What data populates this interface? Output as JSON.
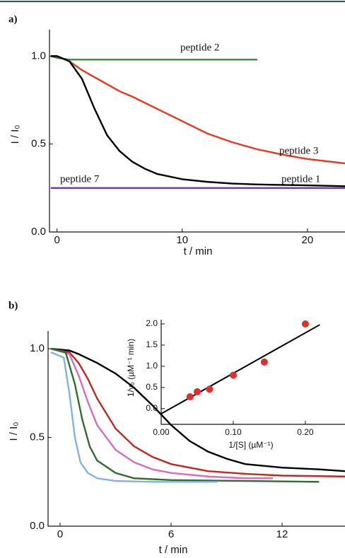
{
  "chart_data": [
    {
      "type": "line",
      "panel": "a)",
      "y_label": "I / I₀",
      "x_label": "t / min",
      "xlim": [
        -0.6,
        23
      ],
      "ylim": [
        0,
        1.15
      ],
      "xticks": [
        0,
        10,
        20
      ],
      "yticks": [
        {
          "value": 0,
          "label": "0.0"
        },
        {
          "value": 0.5,
          "label": "0.5"
        },
        {
          "value": 1,
          "label": "1.0"
        }
      ],
      "series": [
        {
          "name": "peptide 2",
          "color": "#3a8a3a",
          "x": [
            -0.5,
            0,
            1,
            4,
            8,
            12,
            16
          ],
          "values": [
            1,
            0.99,
            0.98,
            0.98,
            0.98,
            0.98,
            0.98
          ]
        },
        {
          "name": "peptide 3",
          "color": "#e8381f",
          "x": [
            -0.5,
            0,
            1,
            2,
            3,
            4,
            5,
            6,
            8,
            10,
            12,
            14,
            16,
            18,
            20,
            23
          ],
          "values": [
            1,
            1,
            0.97,
            0.92,
            0.88,
            0.84,
            0.8,
            0.77,
            0.7,
            0.63,
            0.56,
            0.51,
            0.47,
            0.44,
            0.415,
            0.39
          ]
        },
        {
          "name": "peptide 1",
          "color": "#000000",
          "x": [
            -0.5,
            0,
            1,
            2,
            3,
            4,
            5,
            6,
            7,
            8,
            10,
            12,
            14,
            16,
            20,
            23
          ],
          "values": [
            1,
            1,
            0.97,
            0.87,
            0.7,
            0.55,
            0.46,
            0.4,
            0.36,
            0.33,
            0.3,
            0.285,
            0.275,
            0.27,
            0.265,
            0.26
          ]
        },
        {
          "name": "peptide 7",
          "color": "#6a3db0",
          "x": [
            -0.5,
            5,
            10,
            15,
            23
          ],
          "values": [
            0.25,
            0.25,
            0.25,
            0.25,
            0.25
          ]
        }
      ]
    },
    {
      "type": "line",
      "panel": "b)",
      "y_label": "I / I₀",
      "x_label": "t / min",
      "xlim": [
        -0.65,
        15.4
      ],
      "ylim": [
        0,
        1.1
      ],
      "xticks": [
        0,
        6,
        12
      ],
      "yticks": [
        {
          "value": 0,
          "label": "0.0"
        },
        {
          "value": 0.5,
          "label": "0.5"
        },
        {
          "value": 1,
          "label": "1.0"
        }
      ],
      "series": [
        {
          "color": "#000000",
          "x": [
            -0.5,
            0.5,
            1,
            2,
            3,
            4,
            5,
            6,
            7,
            8,
            9,
            10,
            12,
            14,
            15.4
          ],
          "values": [
            1,
            0.99,
            0.97,
            0.92,
            0.86,
            0.78,
            0.68,
            0.57,
            0.48,
            0.42,
            0.38,
            0.35,
            0.33,
            0.32,
            0.31
          ]
        },
        {
          "color": "#c0281e",
          "x": [
            -0.5,
            0.5,
            1,
            1.5,
            2,
            3,
            4,
            5,
            6,
            8,
            10,
            12,
            15.4
          ],
          "values": [
            1,
            0.98,
            0.92,
            0.83,
            0.72,
            0.55,
            0.45,
            0.39,
            0.35,
            0.31,
            0.295,
            0.285,
            0.28
          ]
        },
        {
          "color": "#d86cc0",
          "x": [
            -0.5,
            0.5,
            1,
            1.5,
            2,
            3,
            4,
            5,
            6,
            8,
            10,
            11.5
          ],
          "values": [
            1,
            0.97,
            0.85,
            0.7,
            0.57,
            0.43,
            0.36,
            0.32,
            0.3,
            0.28,
            0.27,
            0.27
          ]
        },
        {
          "color": "#2e6e2a",
          "x": [
            -0.5,
            0.3,
            0.8,
            1.2,
            1.6,
            2,
            3,
            4,
            6,
            10,
            14
          ],
          "values": [
            1,
            0.98,
            0.8,
            0.6,
            0.45,
            0.37,
            0.3,
            0.27,
            0.26,
            0.255,
            0.25
          ]
        },
        {
          "color": "#7fb2e8",
          "x": [
            -0.5,
            0.2,
            0.5,
            0.8,
            1.1,
            1.5,
            2,
            3,
            5,
            8.5
          ],
          "values": [
            0.98,
            0.95,
            0.75,
            0.5,
            0.36,
            0.3,
            0.27,
            0.255,
            0.25,
            0.25
          ]
        }
      ]
    },
    {
      "type": "scatter",
      "y_label": "1/v₀ (µM⁻¹ min)",
      "x_label": "1/[S] (µM⁻¹)",
      "xlim": [
        0,
        0.255
      ],
      "ylim": [
        -0.37,
        2.1
      ],
      "xticks": [
        {
          "value": 0,
          "label": "0.00"
        },
        {
          "value": 0.1,
          "label": "0.10"
        },
        {
          "value": 0.2,
          "label": "0.20"
        }
      ],
      "yticks": [
        {
          "value": 0,
          "label": "0.0"
        },
        {
          "value": 0.5,
          "label": "0.5"
        },
        {
          "value": 1,
          "label": "1.0"
        },
        {
          "value": 1.5,
          "label": "1.5"
        },
        {
          "value": 2,
          "label": "2.0"
        }
      ],
      "color": "#e0302a",
      "x": [
        0.04,
        0.05,
        0.067,
        0.1,
        0.143,
        0.2
      ],
      "values": [
        0.28,
        0.4,
        0.46,
        0.79,
        1.1,
        2.0
      ],
      "fit": {
        "color": "#000000",
        "x": [
          0,
          0.22
        ],
        "values": [
          -0.12,
          1.98
        ]
      }
    }
  ]
}
